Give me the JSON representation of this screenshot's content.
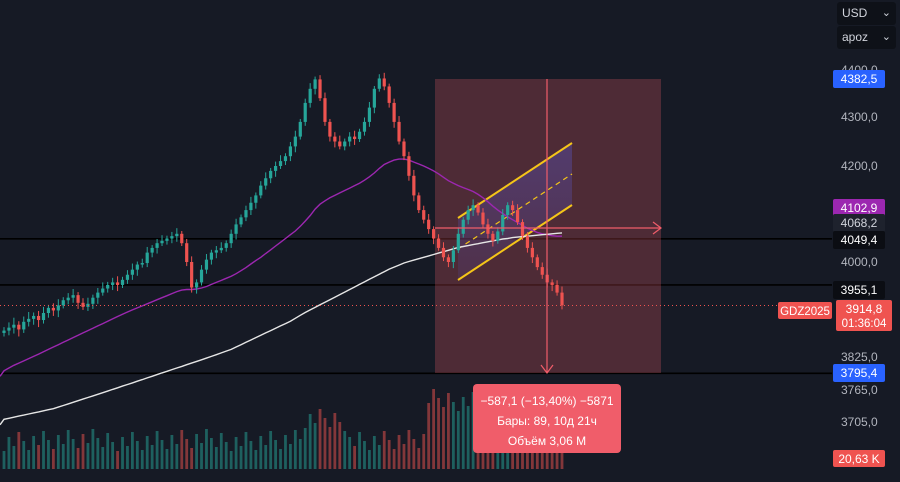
{
  "controls": {
    "currency": "USD",
    "mode": "apoz"
  },
  "symbol": "GDZ2025",
  "countdown": "01:36:04",
  "price_labels": {
    "high_marker": "4382,5",
    "purple_marker": "4102,9",
    "cursor_level": "4068,2",
    "line_level_1": "4049,4",
    "line_level_2": "3955,1",
    "current_price": "3914,8",
    "low_marker": "3795,4",
    "volume_marker": "20,63 K"
  },
  "measurement": {
    "line1": "−587,1 (−13,40%) −5871",
    "line2": "Бары: 89, 10д 21ч",
    "line3": "Объём 3,06 M"
  },
  "colors": {
    "up": "#26a69a",
    "down": "#ef5350",
    "ma_purple": "#9c27b0",
    "ma_white": "#e6e6e6",
    "channel": "#f5c518",
    "measure_zone": "#f05d6a"
  },
  "chart_data": {
    "type": "candlestick",
    "y_tick_labels": [
      "4400,0",
      "4300,0",
      "4200,0",
      "4100,0",
      "4000,0",
      "3825,0",
      "3765,0",
      "3705,0"
    ],
    "y_ticks": [
      4400,
      4300,
      4200,
      4100,
      4000,
      3825,
      3765,
      3705
    ],
    "ylim": [
      3690,
      4420
    ],
    "horizontal_lines": [
      4049.4,
      3955.1,
      3795.4
    ],
    "current_price": 3914.8,
    "measure_range": {
      "from": 4382.5,
      "to": 3795.4
    },
    "closes": [
      3870,
      3875,
      3880,
      3872,
      3885,
      3890,
      3895,
      3888,
      3900,
      3910,
      3905,
      3915,
      3925,
      3930,
      3935,
      3920,
      3912,
      3918,
      3930,
      3940,
      3948,
      3955,
      3960,
      3955,
      3965,
      3975,
      3985,
      3995,
      3998,
      4020,
      4030,
      4040,
      4045,
      4050,
      4055,
      4060,
      4040,
      4000,
      3950,
      3960,
      3985,
      4005,
      4020,
      4025,
      4030,
      4040,
      4060,
      4080,
      4095,
      4110,
      4125,
      4140,
      4160,
      4175,
      4190,
      4200,
      4210,
      4220,
      4240,
      4260,
      4290,
      4330,
      4360,
      4380,
      4340,
      4290,
      4260,
      4250,
      4240,
      4250,
      4260,
      4255,
      4270,
      4290,
      4320,
      4360,
      4382,
      4365,
      4330,
      4290,
      4250,
      4220,
      4180,
      4140,
      4110,
      4090,
      4070,
      4050,
      4030,
      4010,
      4000,
      4025,
      4060,
      4090,
      4110,
      4120,
      4105,
      4080,
      4060,
      4045,
      4065,
      4100,
      4120,
      4110,
      4085,
      4055,
      4030,
      4010,
      3990,
      3975,
      3960,
      3955,
      3940,
      3915
    ],
    "purple_ma": [
      3800,
      3805,
      3810,
      3814,
      3818,
      3822,
      3826,
      3830,
      3834,
      3838,
      3842,
      3846,
      3850,
      3854,
      3858,
      3862,
      3866,
      3870,
      3874,
      3878,
      3882,
      3886,
      3890,
      3894,
      3898,
      3902,
      3906,
      3910,
      3914,
      3918,
      3922,
      3926,
      3930,
      3934,
      3938,
      3942,
      3945,
      3946,
      3946,
      3947,
      3949,
      3952,
      3956,
      3960,
      3964,
      3968,
      3972,
      3977,
      3983,
      3989,
      3996,
      4003,
      4010,
      4018,
      4026,
      4034,
      4042,
      4050,
      4058,
      4066,
      4076,
      4087,
      4099,
      4112,
      4122,
      4129,
      4135,
      4140,
      4145,
      4150,
      4155,
      4160,
      4165,
      4171,
      4178,
      4186,
      4195,
      4203,
      4208,
      4212,
      4214,
      4214,
      4212,
      4208,
      4204,
      4200,
      4195,
      4190,
      4184,
      4177,
      4170,
      4165,
      4160,
      4156,
      4152,
      4148,
      4142,
      4135,
      4127,
      4118,
      4110,
      4103,
      4096,
      4090,
      4084,
      4078,
      4072,
      4067,
      4063,
      4060,
      4058,
      4056,
      4055,
      4055
    ],
    "white_ma": [
      3710,
      3712,
      3714,
      3716,
      3718,
      3720,
      3722,
      3724,
      3726,
      3728,
      3730,
      3733,
      3736,
      3739,
      3742,
      3745,
      3748,
      3751,
      3754,
      3757,
      3760,
      3763,
      3766,
      3769,
      3772,
      3775,
      3778,
      3781,
      3784,
      3787,
      3790,
      3793,
      3796,
      3799,
      3802,
      3805,
      3808,
      3811,
      3814,
      3817,
      3820,
      3823,
      3826,
      3829,
      3832,
      3835,
      3838,
      3842,
      3846,
      3850,
      3854,
      3858,
      3862,
      3866,
      3870,
      3874,
      3878,
      3882,
      3886,
      3891,
      3896,
      3901,
      3906,
      3911,
      3916,
      3921,
      3926,
      3931,
      3936,
      3941,
      3946,
      3951,
      3956,
      3961,
      3966,
      3971,
      3976,
      3981,
      3986,
      3990,
      3994,
      3998,
      4001,
      4004,
      4007,
      4010,
      4013,
      4016,
      4019,
      4022,
      4025,
      4028,
      4031,
      4033,
      4035,
      4037,
      4039,
      4041,
      4043,
      4045,
      4047,
      4049,
      4050,
      4052,
      4053,
      4054,
      4055,
      4056,
      4057,
      4058,
      4059,
      4060,
      4061,
      4062
    ]
  }
}
